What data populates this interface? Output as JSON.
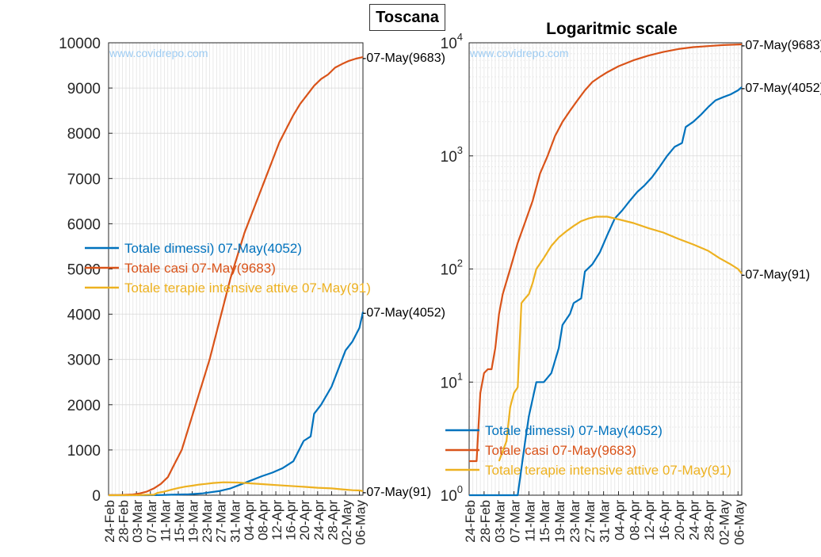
{
  "figure": {
    "title": "Toscana"
  },
  "colors": {
    "blue": "#0072BD",
    "orange": "#D95319",
    "yellow": "#EDB120",
    "watermark": "#9ECCF2",
    "grid": "#E3E3E3"
  },
  "chart_data": [
    {
      "type": "line",
      "title": "",
      "watermark": "www.covidrepo.com",
      "x_tick_labels": [
        "24-Feb",
        "28-Feb",
        "03-Mar",
        "07-Mar",
        "11-Mar",
        "15-Mar",
        "19-Mar",
        "23-Mar",
        "27-Mar",
        "31-Mar",
        "04-Apr",
        "08-Apr",
        "12-Apr",
        "16-Apr",
        "20-Apr",
        "24-Apr",
        "28-Apr",
        "02-May",
        "06-May"
      ],
      "xlim": [
        "24-Feb",
        "07-May"
      ],
      "y_ticks": [
        0,
        1000,
        2000,
        3000,
        4000,
        5000,
        6000,
        7000,
        8000,
        9000,
        10000
      ],
      "ylim": [
        0,
        10000
      ],
      "scale": "linear",
      "grid": true,
      "legend_position": "middle-left",
      "series": [
        {
          "name": "Totale dimessi) 07-May(4052)",
          "color_key": "blue",
          "end_label": "-07-May(4052)",
          "points": [
            [
              "24-Feb",
              0
            ],
            [
              "06-Mar",
              0
            ],
            [
              "10-Mar",
              3
            ],
            [
              "13-Mar",
              10
            ],
            [
              "18-Mar",
              20
            ],
            [
              "22-Mar",
              40
            ],
            [
              "27-Mar",
              95
            ],
            [
              "30-Mar",
              150
            ],
            [
              "02-Apr",
              240
            ],
            [
              "05-Apr",
              330
            ],
            [
              "08-Apr",
              420
            ],
            [
              "11-Apr",
              500
            ],
            [
              "14-Apr",
              600
            ],
            [
              "17-Apr",
              750
            ],
            [
              "20-Apr",
              1200
            ],
            [
              "22-Apr",
              1300
            ],
            [
              "23-Apr",
              1800
            ],
            [
              "25-Apr",
              2000
            ],
            [
              "28-Apr",
              2400
            ],
            [
              "30-Apr",
              2800
            ],
            [
              "02-May",
              3200
            ],
            [
              "04-May",
              3400
            ],
            [
              "06-May",
              3700
            ],
            [
              "07-May",
              4052
            ]
          ]
        },
        {
          "name": "Totale casi 07-May(9683)",
          "color_key": "orange",
          "end_label": "-07-May(9683)",
          "points": [
            [
              "24-Feb",
              2
            ],
            [
              "27-Feb",
              2
            ],
            [
              "29-Feb",
              8
            ],
            [
              "02-Mar",
              15
            ],
            [
              "04-Mar",
              40
            ],
            [
              "06-Mar",
              80
            ],
            [
              "08-Mar",
              150
            ],
            [
              "10-Mar",
              250
            ],
            [
              "12-Mar",
              400
            ],
            [
              "14-Mar",
              700
            ],
            [
              "16-Mar",
              1000
            ],
            [
              "18-Mar",
              1500
            ],
            [
              "20-Mar",
              2000
            ],
            [
              "22-Mar",
              2500
            ],
            [
              "24-Mar",
              3000
            ],
            [
              "26-Mar",
              3600
            ],
            [
              "28-Mar",
              4200
            ],
            [
              "30-Mar",
              4800
            ],
            [
              "01-Apr",
              5300
            ],
            [
              "03-Apr",
              5800
            ],
            [
              "05-Apr",
              6200
            ],
            [
              "07-Apr",
              6600
            ],
            [
              "09-Apr",
              7000
            ],
            [
              "11-Apr",
              7400
            ],
            [
              "13-Apr",
              7800
            ],
            [
              "15-Apr",
              8100
            ],
            [
              "17-Apr",
              8400
            ],
            [
              "19-Apr",
              8650
            ],
            [
              "21-Apr",
              8850
            ],
            [
              "23-Apr",
              9050
            ],
            [
              "25-Apr",
              9200
            ],
            [
              "27-Apr",
              9300
            ],
            [
              "29-Apr",
              9450
            ],
            [
              "01-May",
              9530
            ],
            [
              "03-May",
              9600
            ],
            [
              "05-May",
              9650
            ],
            [
              "07-May",
              9683
            ]
          ]
        },
        {
          "name": "Totale terapie intensive attive 07-May(91)",
          "color_key": "yellow",
          "end_label": "-07-May(91)",
          "points": [
            [
              "24-Feb",
              0
            ],
            [
              "03-Mar",
              2
            ],
            [
              "06-Mar",
              8
            ],
            [
              "08-Mar",
              10
            ],
            [
              "09-Mar",
              50
            ],
            [
              "11-Mar",
              80
            ],
            [
              "13-Mar",
              120
            ],
            [
              "15-Mar",
              160
            ],
            [
              "17-Mar",
              190
            ],
            [
              "19-Mar",
              210
            ],
            [
              "21-Mar",
              235
            ],
            [
              "23-Mar",
              250
            ],
            [
              "25-Mar",
              270
            ],
            [
              "28-Mar",
              285
            ],
            [
              "01-Apr",
              280
            ],
            [
              "04-Apr",
              265
            ],
            [
              "08-Apr",
              245
            ],
            [
              "12-Apr",
              225
            ],
            [
              "16-Apr",
              205
            ],
            [
              "20-Apr",
              185
            ],
            [
              "24-Apr",
              165
            ],
            [
              "28-Apr",
              150
            ],
            [
              "01-May",
              130
            ],
            [
              "04-May",
              110
            ],
            [
              "06-May",
              105
            ],
            [
              "07-May",
              91
            ]
          ]
        }
      ]
    },
    {
      "type": "line",
      "title": "Logaritmic scale",
      "watermark": "www.covidrepo.com",
      "x_tick_labels": [
        "24-Feb",
        "28-Feb",
        "03-Mar",
        "07-Mar",
        "11-Mar",
        "15-Mar",
        "19-Mar",
        "23-Mar",
        "27-Mar",
        "31-Mar",
        "04-Apr",
        "08-Apr",
        "12-Apr",
        "16-Apr",
        "20-Apr",
        "24-Apr",
        "28-Apr",
        "02-May",
        "06-May"
      ],
      "xlim": [
        "24-Feb",
        "07-May"
      ],
      "y_tick_bases": [
        "10",
        "10",
        "10",
        "10",
        "10"
      ],
      "y_tick_exponents": [
        "0",
        "1",
        "2",
        "3",
        "4"
      ],
      "ylim": [
        1,
        10000
      ],
      "scale": "log",
      "grid": true,
      "legend_position": "bottom-left",
      "series": [
        {
          "name": "Totale dimessi) 07-May(4052)",
          "color_key": "blue",
          "end_label": "-07-May(4052)",
          "points": [
            [
              "24-Feb",
              1
            ],
            [
              "07-Mar",
              1
            ],
            [
              "08-Mar",
              1
            ],
            [
              "10-Mar",
              3
            ],
            [
              "11-Mar",
              5
            ],
            [
              "13-Mar",
              10
            ],
            [
              "15-Mar",
              10
            ],
            [
              "17-Mar",
              12
            ],
            [
              "19-Mar",
              20
            ],
            [
              "20-Mar",
              32
            ],
            [
              "22-Mar",
              40
            ],
            [
              "23-Mar",
              50
            ],
            [
              "25-Mar",
              55
            ],
            [
              "26-Mar",
              95
            ],
            [
              "28-Mar",
              110
            ],
            [
              "30-Mar",
              140
            ],
            [
              "01-Apr",
              200
            ],
            [
              "03-Apr",
              280
            ],
            [
              "05-Apr",
              330
            ],
            [
              "07-Apr",
              400
            ],
            [
              "09-Apr",
              480
            ],
            [
              "11-Apr",
              550
            ],
            [
              "13-Apr",
              650
            ],
            [
              "15-Apr",
              800
            ],
            [
              "17-Apr",
              1000
            ],
            [
              "19-Apr",
              1200
            ],
            [
              "21-Apr",
              1300
            ],
            [
              "22-Apr",
              1800
            ],
            [
              "24-Apr",
              2000
            ],
            [
              "26-Apr",
              2300
            ],
            [
              "28-Apr",
              2700
            ],
            [
              "30-Apr",
              3100
            ],
            [
              "02-May",
              3300
            ],
            [
              "04-May",
              3500
            ],
            [
              "06-May",
              3800
            ],
            [
              "07-May",
              4052
            ]
          ]
        },
        {
          "name": "Totale casi 07-May(9683)",
          "color_key": "orange",
          "end_label": "-07-May(9683)",
          "points": [
            [
              "24-Feb",
              2
            ],
            [
              "26-Feb",
              2
            ],
            [
              "27-Feb",
              8
            ],
            [
              "28-Feb",
              12
            ],
            [
              "29-Feb",
              13
            ],
            [
              "01-Mar",
              13
            ],
            [
              "02-Mar",
              20
            ],
            [
              "03-Mar",
              40
            ],
            [
              "04-Mar",
              60
            ],
            [
              "06-Mar",
              100
            ],
            [
              "08-Mar",
              170
            ],
            [
              "10-Mar",
              260
            ],
            [
              "12-Mar",
              400
            ],
            [
              "14-Mar",
              700
            ],
            [
              "16-Mar",
              1000
            ],
            [
              "18-Mar",
              1500
            ],
            [
              "20-Mar",
              2000
            ],
            [
              "22-Mar",
              2500
            ],
            [
              "24-Mar",
              3100
            ],
            [
              "26-Mar",
              3800
            ],
            [
              "28-Mar",
              4500
            ],
            [
              "30-Mar",
              5000
            ],
            [
              "01-Apr",
              5500
            ],
            [
              "04-Apr",
              6200
            ],
            [
              "08-Apr",
              7000
            ],
            [
              "12-Apr",
              7700
            ],
            [
              "16-Apr",
              8300
            ],
            [
              "20-Apr",
              8800
            ],
            [
              "24-Apr",
              9150
            ],
            [
              "28-Apr",
              9350
            ],
            [
              "02-May",
              9550
            ],
            [
              "07-May",
              9683
            ]
          ]
        },
        {
          "name": "Totale terapie intensive attive 07-May(91)",
          "color_key": "yellow",
          "end_label": "-07-May(91)",
          "points": [
            [
              "03-Mar",
              2
            ],
            [
              "05-Mar",
              3
            ],
            [
              "06-Mar",
              6
            ],
            [
              "07-Mar",
              8
            ],
            [
              "08-Mar",
              9
            ],
            [
              "09-Mar",
              50
            ],
            [
              "10-Mar",
              55
            ],
            [
              "11-Mar",
              60
            ],
            [
              "12-Mar",
              75
            ],
            [
              "13-Mar",
              100
            ],
            [
              "15-Mar",
              125
            ],
            [
              "17-Mar",
              160
            ],
            [
              "19-Mar",
              190
            ],
            [
              "21-Mar",
              215
            ],
            [
              "23-Mar",
              240
            ],
            [
              "25-Mar",
              265
            ],
            [
              "27-Mar",
              280
            ],
            [
              "29-Mar",
              290
            ],
            [
              "01-Apr",
              290
            ],
            [
              "04-Apr",
              275
            ],
            [
              "08-Apr",
              255
            ],
            [
              "12-Apr",
              230
            ],
            [
              "16-Apr",
              210
            ],
            [
              "20-Apr",
              185
            ],
            [
              "24-Apr",
              165
            ],
            [
              "28-Apr",
              145
            ],
            [
              "01-May",
              125
            ],
            [
              "04-May",
              110
            ],
            [
              "06-May",
              100
            ],
            [
              "07-May",
              91
            ]
          ]
        }
      ]
    }
  ]
}
